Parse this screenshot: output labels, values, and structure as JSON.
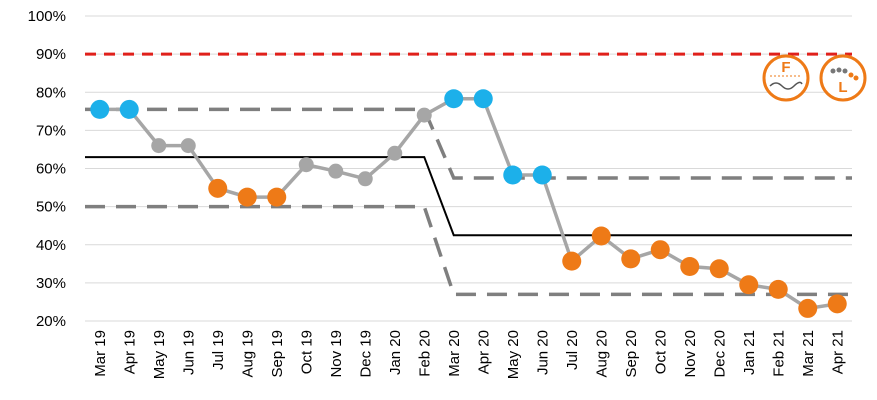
{
  "chart_data": {
    "type": "line",
    "categories": [
      "Mar 19",
      "Apr 19",
      "May 19",
      "Jun 19",
      "Jul 19",
      "Aug 19",
      "Sep 19",
      "Oct 19",
      "Nov 19",
      "Dec 19",
      "Jan 20",
      "Feb 20",
      "Mar 20",
      "Apr 20",
      "May 20",
      "Jun 20",
      "Jul 20",
      "Aug 20",
      "Sep 20",
      "Oct 20",
      "Nov 20",
      "Dec 20",
      "Jan 21",
      "Feb 21",
      "Mar 21",
      "Apr 21"
    ],
    "ylim": [
      0.2,
      1.0
    ],
    "yticks": [
      "20%",
      "30%",
      "40%",
      "50%",
      "60%",
      "70%",
      "80%",
      "90%",
      "100%"
    ],
    "ytick_values": [
      0.2,
      0.3,
      0.4,
      0.5,
      0.6,
      0.7,
      0.8,
      0.9,
      1.0
    ],
    "grid": true,
    "series": [
      {
        "values": [
          0.755,
          0.755,
          0.66,
          0.66,
          0.548,
          0.525,
          0.525,
          0.61,
          0.593,
          0.573,
          0.64,
          0.74,
          0.783,
          0.783,
          0.583,
          0.583,
          0.357,
          0.423,
          0.363,
          0.387,
          0.343,
          0.337,
          0.295,
          0.283,
          0.233,
          0.245
        ],
        "point_colors": [
          "blue",
          "blue",
          "gray",
          "gray",
          "orange",
          "orange",
          "orange",
          "gray",
          "gray",
          "gray",
          "gray",
          "gray",
          "blue",
          "blue",
          "blue",
          "blue",
          "orange",
          "orange",
          "orange",
          "orange",
          "orange",
          "orange",
          "orange",
          "orange",
          "orange",
          "orange"
        ]
      }
    ],
    "mean_line": {
      "segments": [
        {
          "from": 0,
          "to": 11,
          "value": 0.63
        },
        {
          "from": 12,
          "to": 25,
          "value": 0.425
        }
      ]
    },
    "upper_limit": {
      "segments": [
        {
          "from": 0,
          "to": 11,
          "value": 0.755
        },
        {
          "from": 12,
          "to": 25,
          "value": 0.575
        }
      ]
    },
    "lower_limit": {
      "segments": [
        {
          "from": 0,
          "to": 11,
          "value": 0.5
        },
        {
          "from": 12,
          "to": 25,
          "value": 0.27
        }
      ]
    },
    "target_line": {
      "value": 0.9
    },
    "colors": {
      "blue": "#1cb0ea",
      "orange": "#ee7a17",
      "gray": "#a6a6a6",
      "line": "#a6a6a6",
      "mean": "#000000",
      "limits": "#7f7f7f",
      "target": "#e0201b",
      "grid": "#d9d9d9"
    }
  },
  "badges": [
    {
      "name": "F",
      "icon": "forecast-icon",
      "color": "#ee7a17"
    },
    {
      "name": "L",
      "icon": "trend-icon",
      "color": "#ee7a17"
    }
  ]
}
